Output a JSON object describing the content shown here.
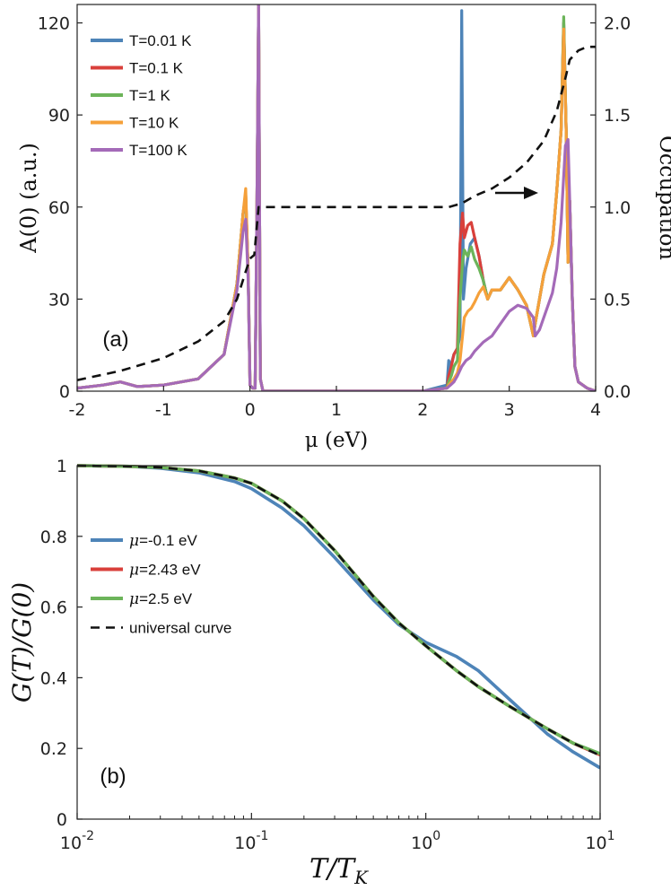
{
  "chart_data": [
    {
      "type": "line",
      "panel_label": "(a)",
      "xlabel": "μ (eV)",
      "ylabel": "A(0) (a.u.)",
      "ylabel_right": "Occupation",
      "xlim": [
        -2,
        4
      ],
      "ylim": [
        0,
        126
      ],
      "ylim_right": [
        0,
        2.1
      ],
      "xticks": [
        -2,
        -1,
        0,
        1,
        2,
        3,
        4
      ],
      "yticks": [
        0,
        30,
        60,
        90,
        120
      ],
      "yticks_right": [
        "0.0",
        "0.5",
        "1.0",
        "1.5",
        "2.0"
      ],
      "annotation": "arrow pointing to right axis (occupation)",
      "series": [
        {
          "name": "T=0.01 K",
          "color": "#4e84b8",
          "x": [
            -2,
            -1.7,
            -1.5,
            -1.3,
            -1,
            -0.6,
            -0.3,
            -0.15,
            -0.08,
            -0.05,
            -0.02,
            0,
            0.03,
            0.06,
            0.08,
            0.1,
            0.12,
            0.15,
            0.5,
            1,
            1.5,
            2,
            2.28,
            2.3,
            2.32,
            2.36,
            2.4,
            2.43,
            2.45,
            2.47,
            2.5,
            2.55,
            2.6,
            2.65,
            2.7,
            2.75,
            2.8,
            2.9,
            3,
            3.1,
            3.2,
            3.28,
            3.3,
            3.35,
            3.4,
            3.5,
            3.55,
            3.6,
            3.63,
            3.66,
            3.68,
            3.7,
            3.73,
            3.76,
            3.8,
            3.9,
            4
          ],
          "y": [
            1,
            2,
            3,
            1.5,
            2,
            4,
            12,
            35,
            58,
            62,
            38,
            2,
            1,
            1,
            60,
            126,
            4,
            0,
            0,
            0,
            0,
            0,
            2,
            10,
            8,
            12,
            14,
            18,
            124,
            30,
            40,
            48,
            50,
            44,
            36,
            30,
            33,
            33,
            37,
            33,
            28,
            18,
            22,
            30,
            38,
            48,
            65,
            85,
            120,
            84,
            42,
            62,
            30,
            8,
            3,
            1,
            0
          ]
        },
        {
          "name": "T=0.1 K",
          "color": "#d9403b",
          "x": [
            -2,
            -1.7,
            -1.5,
            -1.3,
            -1,
            -0.6,
            -0.3,
            -0.15,
            -0.08,
            -0.05,
            -0.02,
            0,
            0.03,
            0.06,
            0.08,
            0.1,
            0.12,
            0.15,
            0.5,
            1,
            1.5,
            2,
            2.28,
            2.3,
            2.33,
            2.36,
            2.4,
            2.43,
            2.46,
            2.48,
            2.52,
            2.56,
            2.6,
            2.65,
            2.7,
            2.75,
            2.8,
            2.9,
            3,
            3.1,
            3.2,
            3.28,
            3.3,
            3.35,
            3.4,
            3.5,
            3.55,
            3.6,
            3.63,
            3.66,
            3.68,
            3.7,
            3.73,
            3.76,
            3.8,
            3.9,
            4
          ],
          "y": [
            1,
            2,
            3,
            1.5,
            2,
            4,
            12,
            35,
            58,
            64,
            38,
            2,
            1,
            1,
            60,
            126,
            4,
            0,
            0,
            0,
            0,
            0,
            1,
            5,
            8,
            12,
            14,
            48,
            58,
            50,
            54,
            55,
            50,
            44,
            36,
            30,
            33,
            33,
            37,
            33,
            28,
            18,
            22,
            30,
            38,
            48,
            65,
            85,
            120,
            84,
            42,
            62,
            30,
            8,
            3,
            1,
            0
          ]
        },
        {
          "name": "T=1 K",
          "color": "#6cb45a",
          "x": [
            -2,
            -1.7,
            -1.5,
            -1.3,
            -1,
            -0.6,
            -0.3,
            -0.15,
            -0.08,
            -0.05,
            -0.02,
            0,
            0.03,
            0.06,
            0.08,
            0.1,
            0.12,
            0.15,
            0.5,
            1,
            1.5,
            2,
            2.28,
            2.3,
            2.33,
            2.36,
            2.4,
            2.43,
            2.46,
            2.48,
            2.52,
            2.56,
            2.6,
            2.65,
            2.7,
            2.75,
            2.8,
            2.9,
            3,
            3.1,
            3.2,
            3.28,
            3.3,
            3.35,
            3.4,
            3.5,
            3.55,
            3.6,
            3.63,
            3.66,
            3.68,
            3.7,
            3.73,
            3.76,
            3.8,
            3.9,
            4
          ],
          "y": [
            1,
            2,
            3,
            1.5,
            2,
            4,
            12,
            35,
            58,
            64,
            38,
            2,
            1,
            1,
            60,
            126,
            4,
            0,
            0,
            0,
            0,
            0,
            1,
            3,
            5,
            8,
            10,
            30,
            42,
            46,
            44,
            47,
            43,
            40,
            36,
            30,
            33,
            33,
            37,
            33,
            28,
            18,
            22,
            30,
            38,
            48,
            65,
            85,
            122,
            84,
            42,
            62,
            30,
            8,
            3,
            1,
            0
          ]
        },
        {
          "name": "T=10 K",
          "color": "#f5a03a",
          "x": [
            -2,
            -1.7,
            -1.5,
            -1.3,
            -1,
            -0.6,
            -0.3,
            -0.15,
            -0.08,
            -0.05,
            -0.02,
            0,
            0.03,
            0.06,
            0.08,
            0.1,
            0.12,
            0.15,
            0.5,
            1,
            1.5,
            2,
            2.28,
            2.3,
            2.33,
            2.36,
            2.4,
            2.43,
            2.46,
            2.48,
            2.52,
            2.56,
            2.6,
            2.65,
            2.7,
            2.75,
            2.8,
            2.9,
            3,
            3.1,
            3.2,
            3.28,
            3.3,
            3.35,
            3.4,
            3.5,
            3.55,
            3.6,
            3.63,
            3.66,
            3.68,
            3.7,
            3.73,
            3.76,
            3.8,
            3.9,
            4
          ],
          "y": [
            1,
            2,
            3,
            1.5,
            2,
            4,
            12,
            35,
            58,
            66,
            38,
            2,
            1,
            1,
            60,
            126,
            4,
            0,
            0,
            0,
            0,
            0,
            1,
            2,
            3,
            4,
            6,
            10,
            18,
            24,
            26,
            27,
            29,
            32,
            34,
            30,
            33,
            33,
            37,
            33,
            28,
            18,
            22,
            30,
            38,
            48,
            65,
            85,
            118,
            84,
            42,
            62,
            30,
            8,
            3,
            1,
            0
          ]
        },
        {
          "name": "T=100 K",
          "color": "#a46ab8",
          "x": [
            -2,
            -1.7,
            -1.5,
            -1.3,
            -1,
            -0.6,
            -0.3,
            -0.15,
            -0.08,
            -0.05,
            -0.02,
            0,
            0.03,
            0.06,
            0.08,
            0.1,
            0.12,
            0.15,
            0.5,
            1,
            1.5,
            2,
            2.28,
            2.32,
            2.36,
            2.4,
            2.45,
            2.5,
            2.55,
            2.6,
            2.7,
            2.8,
            2.9,
            3,
            3.1,
            3.2,
            3.28,
            3.3,
            3.35,
            3.4,
            3.5,
            3.55,
            3.6,
            3.65,
            3.68,
            3.7,
            3.73,
            3.76,
            3.8,
            3.9,
            4
          ],
          "y": [
            1,
            2,
            3,
            1.5,
            2,
            4,
            12,
            33,
            52,
            56,
            36,
            2,
            1,
            1,
            60,
            126,
            4,
            0,
            0,
            0,
            0,
            0,
            1,
            2,
            3,
            5,
            8,
            10,
            11,
            13,
            16,
            18,
            22,
            26,
            28,
            27,
            24,
            18,
            20,
            24,
            32,
            40,
            55,
            80,
            82,
            62,
            30,
            8,
            3,
            1,
            0
          ]
        },
        {
          "name": "Occupation",
          "color": "#111111",
          "dashed": true,
          "axis": "right",
          "x": [
            -2,
            -1.5,
            -1,
            -0.6,
            -0.3,
            -0.15,
            -0.05,
            0,
            0.05,
            0.08,
            0.1,
            0.15,
            0.5,
            1,
            1.5,
            2,
            2.3,
            2.45,
            2.6,
            2.8,
            3,
            3.2,
            3.4,
            3.55,
            3.65,
            3.7,
            3.8,
            3.9,
            4
          ],
          "y": [
            0.06,
            0.11,
            0.18,
            0.27,
            0.38,
            0.5,
            0.65,
            0.72,
            0.74,
            0.9,
            1.0,
            1.0,
            1.0,
            1.0,
            1.0,
            1.0,
            1.0,
            1.02,
            1.06,
            1.1,
            1.16,
            1.24,
            1.36,
            1.52,
            1.7,
            1.8,
            1.85,
            1.87,
            1.87
          ]
        }
      ]
    },
    {
      "type": "line",
      "panel_label": "(b)",
      "xscale": "log",
      "xlabel": "T/T_K",
      "ylabel": "G(T)/G(0)",
      "xlim": [
        0.01,
        10
      ],
      "ylim": [
        0,
        1
      ],
      "xticks": [
        0.01,
        0.1,
        1,
        10
      ],
      "xtick_labels": [
        {
          "base": "10",
          "exp": "-2"
        },
        {
          "base": "10",
          "exp": "-1"
        },
        {
          "base": "10",
          "exp": "0"
        },
        {
          "base": "10",
          "exp": "1"
        }
      ],
      "yticks": [
        "0",
        "0.2",
        "0.4",
        "0.6",
        "0.8",
        "1"
      ],
      "series": [
        {
          "name": "μ=-0.1 eV",
          "label_suffix": "=-0.1 eV",
          "color": "#4e84b8",
          "x": [
            0.01,
            0.02,
            0.03,
            0.05,
            0.08,
            0.1,
            0.15,
            0.2,
            0.3,
            0.5,
            0.7,
            1,
            1.5,
            2,
            3,
            5,
            7,
            10
          ],
          "y": [
            1.0,
            0.998,
            0.993,
            0.98,
            0.955,
            0.935,
            0.88,
            0.83,
            0.74,
            0.62,
            0.55,
            0.5,
            0.46,
            0.42,
            0.34,
            0.24,
            0.19,
            0.145
          ]
        },
        {
          "name": "μ=2.43 eV",
          "label_suffix": "=2.43 eV",
          "color": "#d9403b",
          "x": [
            0.01,
            0.02,
            0.03,
            0.05,
            0.08,
            0.1,
            0.15,
            0.2,
            0.3,
            0.5,
            0.7,
            1,
            1.5,
            2,
            3,
            5,
            7,
            10
          ],
          "y": [
            1.0,
            0.998,
            0.995,
            0.985,
            0.965,
            0.95,
            0.9,
            0.85,
            0.76,
            0.63,
            0.555,
            0.49,
            0.42,
            0.375,
            0.32,
            0.255,
            0.215,
            0.182
          ]
        },
        {
          "name": "μ=2.5 eV",
          "label_suffix": "=2.5 eV",
          "color": "#6cb45a",
          "x": [
            0.01,
            0.02,
            0.03,
            0.05,
            0.08,
            0.1,
            0.15,
            0.2,
            0.3,
            0.5,
            0.7,
            1,
            1.5,
            2,
            3,
            5,
            7,
            10
          ],
          "y": [
            1.0,
            0.998,
            0.995,
            0.985,
            0.965,
            0.95,
            0.9,
            0.85,
            0.76,
            0.63,
            0.555,
            0.49,
            0.42,
            0.375,
            0.32,
            0.255,
            0.215,
            0.185
          ]
        },
        {
          "name": "universal curve",
          "color": "#111111",
          "dashed": true,
          "x": [
            0.01,
            0.02,
            0.03,
            0.05,
            0.08,
            0.1,
            0.15,
            0.2,
            0.3,
            0.5,
            0.7,
            1,
            1.5,
            2,
            3,
            5,
            7,
            10
          ],
          "y": [
            1.0,
            0.998,
            0.995,
            0.985,
            0.965,
            0.95,
            0.9,
            0.85,
            0.76,
            0.63,
            0.555,
            0.49,
            0.42,
            0.375,
            0.32,
            0.255,
            0.215,
            0.18
          ]
        }
      ]
    }
  ]
}
